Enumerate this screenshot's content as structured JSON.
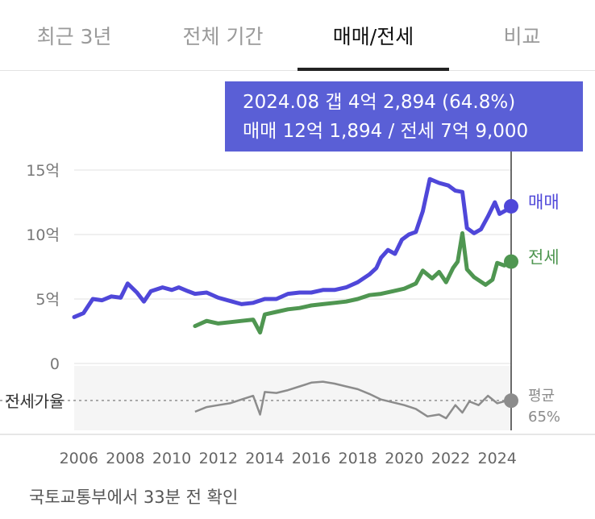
{
  "tabs": [
    {
      "label": "최근 3년",
      "active": false
    },
    {
      "label": "전체 기간",
      "active": false
    },
    {
      "label": "매매/전세",
      "active": true
    },
    {
      "label": "비교",
      "active": false
    }
  ],
  "tooltip": {
    "line1": "2024.08  갭 4억 2,894 (64.8%)",
    "line2": "매매 12억 1,894 / 전세 7억 9,000"
  },
  "footer": "국토교통부에서 33분 전 확인",
  "colors": {
    "sale": "#4f47d9",
    "jeonse": "#4f9651",
    "ratio": "#8c8c8c",
    "tooltip_bg": "#5a5fd6",
    "cursor": "#3b3b3b"
  },
  "chart_data": [
    {
      "type": "line",
      "y_ticks": [
        {
          "value": 15,
          "label": "15억"
        },
        {
          "value": 10,
          "label": "10억"
        },
        {
          "value": 5,
          "label": "5억"
        },
        {
          "value": 0,
          "label": "0"
        }
      ],
      "ylim": [
        0,
        15
      ],
      "x_ticks": [
        "2006",
        "2008",
        "2010",
        "2012",
        "2014",
        "2016",
        "2018",
        "2020",
        "2022",
        "2024"
      ],
      "xlim": [
        2005.5,
        2025.2
      ],
      "series": [
        {
          "name": "매매",
          "color": "#4f47d9",
          "end_value": 12.19,
          "points": [
            [
              2005.8,
              3.6
            ],
            [
              2006.2,
              3.9
            ],
            [
              2006.6,
              5.0
            ],
            [
              2007.0,
              4.9
            ],
            [
              2007.4,
              5.2
            ],
            [
              2007.8,
              5.1
            ],
            [
              2008.1,
              6.2
            ],
            [
              2008.5,
              5.5
            ],
            [
              2008.8,
              4.8
            ],
            [
              2009.1,
              5.6
            ],
            [
              2009.6,
              5.9
            ],
            [
              2010.0,
              5.7
            ],
            [
              2010.3,
              5.9
            ],
            [
              2010.7,
              5.6
            ],
            [
              2011.0,
              5.4
            ],
            [
              2011.5,
              5.5
            ],
            [
              2012.0,
              5.1
            ],
            [
              2012.6,
              4.8
            ],
            [
              2013.0,
              4.6
            ],
            [
              2013.5,
              4.7
            ],
            [
              2014.0,
              5.0
            ],
            [
              2014.5,
              5.0
            ],
            [
              2015.0,
              5.4
            ],
            [
              2015.5,
              5.5
            ],
            [
              2016.0,
              5.5
            ],
            [
              2016.5,
              5.7
            ],
            [
              2017.0,
              5.7
            ],
            [
              2017.5,
              5.9
            ],
            [
              2018.0,
              6.3
            ],
            [
              2018.5,
              6.9
            ],
            [
              2018.8,
              7.4
            ],
            [
              2019.0,
              8.2
            ],
            [
              2019.3,
              8.8
            ],
            [
              2019.6,
              8.5
            ],
            [
              2019.9,
              9.6
            ],
            [
              2020.2,
              10.0
            ],
            [
              2020.5,
              10.2
            ],
            [
              2020.8,
              11.8
            ],
            [
              2021.1,
              14.3
            ],
            [
              2021.5,
              14.0
            ],
            [
              2021.9,
              13.8
            ],
            [
              2022.2,
              13.4
            ],
            [
              2022.5,
              13.3
            ],
            [
              2022.7,
              10.5
            ],
            [
              2023.0,
              10.1
            ],
            [
              2023.3,
              10.4
            ],
            [
              2023.6,
              11.4
            ],
            [
              2023.9,
              12.5
            ],
            [
              2024.1,
              11.6
            ],
            [
              2024.4,
              11.9
            ],
            [
              2024.6,
              12.19
            ]
          ]
        },
        {
          "name": "전세",
          "color": "#4f9651",
          "end_value": 7.9,
          "points": [
            [
              2011.0,
              2.9
            ],
            [
              2011.5,
              3.3
            ],
            [
              2012.0,
              3.1
            ],
            [
              2012.5,
              3.2
            ],
            [
              2013.0,
              3.3
            ],
            [
              2013.5,
              3.4
            ],
            [
              2013.8,
              2.4
            ],
            [
              2014.0,
              3.8
            ],
            [
              2014.5,
              4.0
            ],
            [
              2015.0,
              4.2
            ],
            [
              2015.5,
              4.3
            ],
            [
              2016.0,
              4.5
            ],
            [
              2016.5,
              4.6
            ],
            [
              2017.0,
              4.7
            ],
            [
              2017.5,
              4.8
            ],
            [
              2018.0,
              5.0
            ],
            [
              2018.5,
              5.3
            ],
            [
              2019.0,
              5.4
            ],
            [
              2019.5,
              5.6
            ],
            [
              2020.0,
              5.8
            ],
            [
              2020.5,
              6.2
            ],
            [
              2020.8,
              7.2
            ],
            [
              2021.2,
              6.6
            ],
            [
              2021.5,
              7.1
            ],
            [
              2021.8,
              6.3
            ],
            [
              2022.1,
              7.4
            ],
            [
              2022.3,
              7.9
            ],
            [
              2022.5,
              10.1
            ],
            [
              2022.7,
              7.3
            ],
            [
              2023.0,
              6.7
            ],
            [
              2023.5,
              6.1
            ],
            [
              2023.8,
              6.5
            ],
            [
              2024.0,
              7.8
            ],
            [
              2024.3,
              7.6
            ],
            [
              2024.6,
              7.9
            ]
          ]
        }
      ]
    },
    {
      "type": "line",
      "ylabel": "전세가율",
      "ylim": [
        40,
        95
      ],
      "reference": {
        "value": 65,
        "label_line1": "평균",
        "label_line2": "65%"
      },
      "series": [
        {
          "name": "전세가율",
          "color": "#8c8c8c",
          "end_value": 64.8,
          "points": [
            [
              2011.0,
              53
            ],
            [
              2011.5,
              58
            ],
            [
              2012.0,
              60
            ],
            [
              2012.5,
              62
            ],
            [
              2013.0,
              66
            ],
            [
              2013.5,
              70
            ],
            [
              2013.8,
              50
            ],
            [
              2014.0,
              74
            ],
            [
              2014.5,
              73
            ],
            [
              2015.0,
              76
            ],
            [
              2015.5,
              80
            ],
            [
              2016.0,
              84
            ],
            [
              2016.5,
              85
            ],
            [
              2017.0,
              83
            ],
            [
              2017.5,
              80
            ],
            [
              2018.0,
              77
            ],
            [
              2018.5,
              72
            ],
            [
              2019.0,
              66
            ],
            [
              2019.5,
              63
            ],
            [
              2020.0,
              60
            ],
            [
              2020.5,
              56
            ],
            [
              2021.0,
              48
            ],
            [
              2021.5,
              50
            ],
            [
              2021.8,
              46
            ],
            [
              2022.2,
              60
            ],
            [
              2022.5,
              52
            ],
            [
              2022.8,
              64
            ],
            [
              2023.2,
              60
            ],
            [
              2023.6,
              70
            ],
            [
              2024.0,
              62
            ],
            [
              2024.3,
              64
            ],
            [
              2024.6,
              64.8
            ]
          ]
        }
      ]
    }
  ]
}
